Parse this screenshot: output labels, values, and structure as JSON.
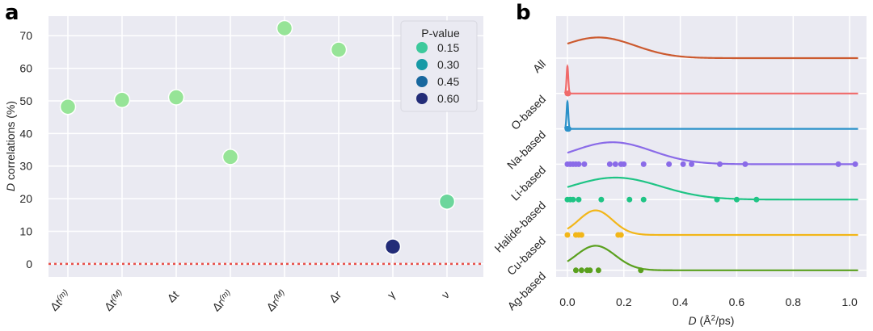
{
  "panel_a_letter": "a",
  "panel_b_letter": "b",
  "chart_data": [
    {
      "type": "scatter",
      "panel": "a",
      "ylabel_italic": "D",
      "ylabel_rest": " correlations (%)",
      "ylim": [
        -4,
        76
      ],
      "yticks": [
        0,
        10,
        20,
        30,
        40,
        50,
        60,
        70
      ],
      "categories": [
        {
          "base": "Δt",
          "sup": "(m)"
        },
        {
          "base": "Δt",
          "sup": "(M)"
        },
        {
          "base": "Δt",
          "sup": ""
        },
        {
          "base": "Δr",
          "sup": "(m)"
        },
        {
          "base": "Δr",
          "sup": "(M)"
        },
        {
          "base": "Δr",
          "sup": ""
        },
        {
          "base": "γ",
          "sup": ""
        },
        {
          "base": "ν",
          "sup": ""
        }
      ],
      "values": [
        48.2,
        50.3,
        51.1,
        32.8,
        72.3,
        65.7,
        5.3,
        19.1
      ],
      "pvalues": [
        0.02,
        0.02,
        0.02,
        0.02,
        0.02,
        0.02,
        0.62,
        0.08
      ],
      "reference_line": 0,
      "legend": {
        "title": "P-value",
        "entries": [
          {
            "label": "0.15",
            "color": "#3dc99c"
          },
          {
            "label": "0.30",
            "color": "#179aa6"
          },
          {
            "label": "0.45",
            "color": "#18679e"
          },
          {
            "label": "0.60",
            "color": "#232c78"
          }
        ],
        "position": "top-right"
      },
      "point_colors": [
        "#96e497",
        "#96e497",
        "#96e497",
        "#96e497",
        "#96e497",
        "#96e497",
        "#232c78",
        "#6cd69c"
      ]
    },
    {
      "type": "ridgeline",
      "panel": "b",
      "xlabel_italic": "D",
      "xlabel_rest": " (Å",
      "xlabel_sup": "2",
      "xlabel_end": "/ps)",
      "xlim": [
        -0.04,
        1.06
      ],
      "xticks": [
        "0.0",
        "0.2",
        "0.4",
        "0.6",
        "0.8",
        "1.0"
      ],
      "xtick_values": [
        0.0,
        0.2,
        0.4,
        0.6,
        0.8,
        1.0
      ],
      "series": [
        {
          "name": "All",
          "color": "#cc5a2f",
          "mu": 0.11,
          "sigma": 0.13,
          "height": 0.8,
          "points": []
        },
        {
          "name": "O-based",
          "color": "#f06a6a",
          "mu": 0.0,
          "sigma": 0.003,
          "height": 1.05,
          "points": [
            0.0,
            0.001,
            0.002,
            0.003
          ]
        },
        {
          "name": "Na-based",
          "color": "#2b91c9",
          "mu": 0.0,
          "sigma": 0.003,
          "height": 1.05,
          "points": [
            0.0,
            0.001,
            0.002,
            0.003,
            0.004
          ]
        },
        {
          "name": "Li-based",
          "color": "#8a6be8",
          "mu": 0.16,
          "sigma": 0.14,
          "height": 0.85,
          "points": [
            0.0,
            0.01,
            0.02,
            0.03,
            0.04,
            0.06,
            0.15,
            0.17,
            0.19,
            0.2,
            0.27,
            0.36,
            0.41,
            0.44,
            0.54,
            0.63,
            0.96,
            1.02
          ]
        },
        {
          "name": "Halide-based",
          "color": "#1fc485",
          "mu": 0.17,
          "sigma": 0.16,
          "height": 0.85,
          "points": [
            0.0,
            0.01,
            0.02,
            0.04,
            0.12,
            0.22,
            0.27,
            0.53,
            0.6,
            0.67
          ]
        },
        {
          "name": "Cu-based",
          "color": "#f2b619",
          "mu": 0.1,
          "sigma": 0.06,
          "height": 0.95,
          "points": [
            0.0,
            0.03,
            0.04,
            0.05,
            0.18,
            0.19
          ]
        },
        {
          "name": "Ag-based",
          "color": "#5aa01e",
          "mu": 0.1,
          "sigma": 0.07,
          "height": 0.95,
          "points": [
            0.03,
            0.05,
            0.07,
            0.08,
            0.11,
            0.26
          ]
        }
      ]
    }
  ]
}
